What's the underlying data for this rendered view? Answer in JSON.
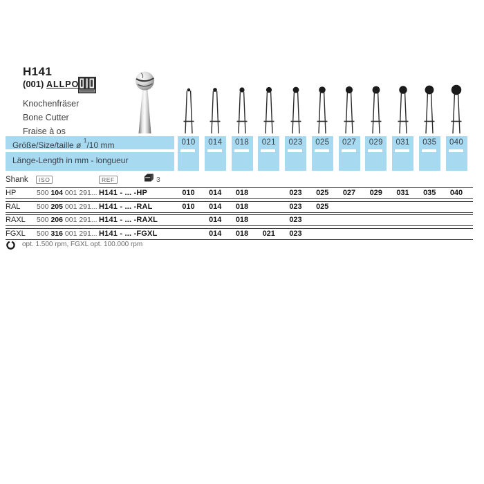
{
  "colors": {
    "band_blue": "#a7d9f1",
    "line_dark": "#3b3b3b"
  },
  "header": {
    "code": "H141",
    "variant": "(001)",
    "brand": "ALLPORT",
    "logo_icon": "allport-stamp-icon",
    "name_de": "Knochenfräser",
    "name_en": "Bone Cutter",
    "name_fr": "Fraise à os"
  },
  "band": {
    "size_label_prefix": "Größe/Size/taille  ø ",
    "size_fraction_sup": "1",
    "size_fraction_rest": "/10 mm",
    "length_label": "Länge-Length in mm - longueur"
  },
  "sizes": [
    "010",
    "014",
    "018",
    "021",
    "023",
    "025",
    "027",
    "029",
    "031",
    "035",
    "040"
  ],
  "table": {
    "shank_label": "Shank",
    "iso_label": "ISO",
    "ref_label": "REF",
    "pack_icon": "package-icon",
    "pack_qty": "3",
    "rows": [
      {
        "shank": "HP",
        "iso_pre": "500",
        "iso_bold": "104",
        "iso_post": "001 291...",
        "ref": "H141 - ... -HP",
        "sizes": [
          "010",
          "014",
          "018",
          "023",
          "025",
          "027",
          "029",
          "031",
          "035",
          "040"
        ]
      },
      {
        "shank": "RAL",
        "iso_pre": "500",
        "iso_bold": "205",
        "iso_post": "001 291...",
        "ref": "H141 - ... -RAL",
        "sizes": [
          "010",
          "014",
          "018",
          "023",
          "025"
        ]
      },
      {
        "shank": "RAXL",
        "iso_pre": "500",
        "iso_bold": "206",
        "iso_post": "001 291...",
        "ref": "H141 - ... -RAXL",
        "sizes": [
          "014",
          "018",
          "023"
        ]
      },
      {
        "shank": "FGXL",
        "iso_pre": "500",
        "iso_bold": "316",
        "iso_post": "001 291...",
        "ref": "H141 - ... -FGXL",
        "sizes": [
          "014",
          "018",
          "021",
          "023"
        ]
      }
    ]
  },
  "footer": {
    "icon": "rotation-speed-icon",
    "note": "opt. 1.500 rpm, FGXL opt. 100.000 rpm"
  }
}
